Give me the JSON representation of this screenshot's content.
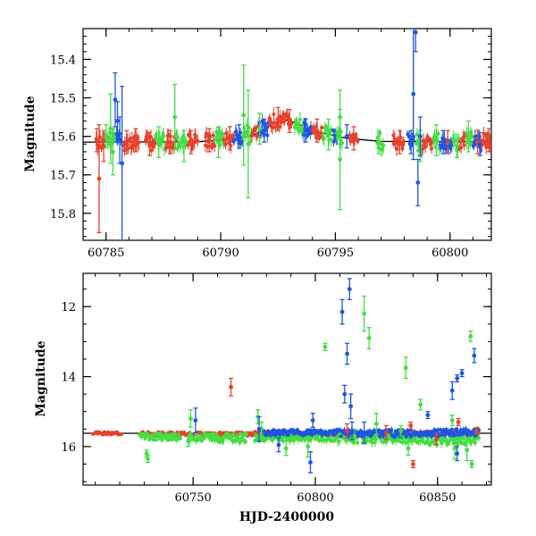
{
  "colors": {
    "red": "#e8412c",
    "green": "#44dd44",
    "blue": "#1f55e0",
    "model": "#000000"
  },
  "chart_data": [
    {
      "type": "scatter",
      "title": "",
      "xlabel": "",
      "ylabel": "Magnitude",
      "xlim": [
        60784,
        60801.8
      ],
      "ylim": [
        15.87,
        15.32
      ],
      "y_inverted": true,
      "grid": false,
      "xticks": [
        60785,
        60790,
        60795,
        60800
      ],
      "xtick_labels": [
        "60785",
        "60790",
        "60795",
        "60800"
      ],
      "yticks": [
        15.4,
        15.5,
        15.6,
        15.7,
        15.8
      ],
      "ytick_labels": [
        "15.4",
        "15.5",
        "15.6",
        "15.7",
        "15.8"
      ],
      "model_curve": {
        "x": [
          60784,
          60789,
          60790.5,
          60791.5,
          60792.2,
          60792.7,
          60793.3,
          60794,
          60795.5,
          60797,
          60801.8
        ],
        "y": [
          15.615,
          15.614,
          15.608,
          15.595,
          15.57,
          15.555,
          15.565,
          15.585,
          15.605,
          15.613,
          15.614
        ]
      },
      "series": [
        {
          "color": "red",
          "points": [
            [
              60784.6,
              15.61,
              0.03
            ],
            [
              60784.7,
              15.71,
              0.14
            ],
            [
              60784.9,
              15.625,
              0.04
            ],
            [
              60785.9,
              15.615,
              0.03
            ],
            [
              60786.3,
              15.61,
              0.03
            ],
            [
              60786.9,
              15.62,
              0.03
            ],
            [
              60787.8,
              15.615,
              0.03
            ],
            [
              60788.7,
              15.615,
              0.03
            ],
            [
              60789.5,
              15.61,
              0.03
            ],
            [
              60790.4,
              15.605,
              0.03
            ],
            [
              60792.5,
              15.555,
              0.03
            ],
            [
              60793.0,
              15.56,
              0.03
            ],
            [
              60794.2,
              15.585,
              0.03
            ],
            [
              60795.8,
              15.605,
              0.03
            ],
            [
              60797.8,
              15.615,
              0.03
            ],
            [
              60799.9,
              15.615,
              0.03
            ],
            [
              60801.2,
              15.615,
              0.03
            ],
            [
              60801.7,
              15.61,
              0.03
            ]
          ]
        },
        {
          "color": "green",
          "points": [
            [
              60785.0,
              15.6,
              0.03
            ],
            [
              60785.2,
              15.58,
              0.09
            ],
            [
              60785.3,
              15.64,
              0.06
            ],
            [
              60787.3,
              15.615,
              0.04
            ],
            [
              60788.0,
              15.55,
              0.085
            ],
            [
              60788.4,
              15.625,
              0.04
            ],
            [
              60789.9,
              15.615,
              0.04
            ],
            [
              60791.0,
              15.545,
              0.13
            ],
            [
              60791.2,
              15.62,
              0.14
            ],
            [
              60791.7,
              15.58,
              0.04
            ],
            [
              60794.7,
              15.595,
              0.04
            ],
            [
              60795.2,
              15.55,
              0.07
            ],
            [
              60795.2,
              15.66,
              0.13
            ],
            [
              60796.9,
              15.615,
              0.03
            ],
            [
              60798.7,
              15.625,
              0.04
            ],
            [
              60799.4,
              15.61,
              0.04
            ],
            [
              60800.3,
              15.625,
              0.03
            ],
            [
              60800.8,
              15.6,
              0.04
            ]
          ]
        },
        {
          "color": "blue",
          "points": [
            [
              60785.4,
              15.505,
              0.07
            ],
            [
              60785.5,
              15.56,
              0.05
            ],
            [
              60785.6,
              15.61,
              0.06
            ],
            [
              60785.7,
              15.67,
              0.2
            ],
            [
              60790.8,
              15.6,
              0.03
            ],
            [
              60791.9,
              15.585,
              0.03
            ],
            [
              60793.7,
              15.585,
              0.03
            ],
            [
              60795.5,
              15.6,
              0.03
            ],
            [
              60798.3,
              15.615,
              0.03
            ],
            [
              60798.4,
              15.49,
              0.17
            ],
            [
              60798.5,
              15.33,
              0.05
            ],
            [
              60798.6,
              15.72,
              0.06
            ],
            [
              60798.7,
              15.6,
              0.05
            ],
            [
              60799.7,
              15.615,
              0.03
            ],
            [
              60801.3,
              15.62,
              0.03
            ]
          ]
        }
      ],
      "dense_bands": [
        {
          "color": "red",
          "x0": 60784.55,
          "x1": 60784.95,
          "y": 15.615,
          "spread": 0.022
        },
        {
          "color": "green",
          "x0": 60785.0,
          "x1": 60785.4,
          "y": 15.612,
          "spread": 0.025
        },
        {
          "color": "blue",
          "x0": 60785.45,
          "x1": 60785.65,
          "y": 15.605,
          "spread": 0.02
        },
        {
          "color": "red",
          "x0": 60785.75,
          "x1": 60786.45,
          "y": 15.615,
          "spread": 0.022
        },
        {
          "color": "red",
          "x0": 60786.7,
          "x1": 60787.15,
          "y": 15.617,
          "spread": 0.02
        },
        {
          "color": "green",
          "x0": 60787.15,
          "x1": 60787.6,
          "y": 15.614,
          "spread": 0.022
        },
        {
          "color": "red",
          "x0": 60787.6,
          "x1": 60788.05,
          "y": 15.615,
          "spread": 0.02
        },
        {
          "color": "green",
          "x0": 60788.05,
          "x1": 60788.5,
          "y": 15.613,
          "spread": 0.022
        },
        {
          "color": "red",
          "x0": 60788.55,
          "x1": 60789.0,
          "y": 15.614,
          "spread": 0.02
        },
        {
          "color": "red",
          "x0": 60789.3,
          "x1": 60789.75,
          "y": 15.612,
          "spread": 0.02
        },
        {
          "color": "green",
          "x0": 60789.75,
          "x1": 60790.15,
          "y": 15.61,
          "spread": 0.022
        },
        {
          "color": "red",
          "x0": 60790.15,
          "x1": 60790.55,
          "y": 15.606,
          "spread": 0.02
        },
        {
          "color": "blue",
          "x0": 60790.55,
          "x1": 60790.95,
          "y": 15.6,
          "spread": 0.02
        },
        {
          "color": "green",
          "x0": 60790.95,
          "x1": 60791.35,
          "y": 15.595,
          "spread": 0.025
        },
        {
          "color": "red",
          "x0": 60791.35,
          "x1": 60791.65,
          "y": 15.588,
          "spread": 0.018
        },
        {
          "color": "blue",
          "x0": 60791.65,
          "x1": 60792.1,
          "y": 15.58,
          "spread": 0.02
        },
        {
          "color": "red",
          "x0": 60792.1,
          "x1": 60792.6,
          "y": 15.56,
          "spread": 0.018
        },
        {
          "color": "red",
          "x0": 60792.6,
          "x1": 60793.1,
          "y": 15.558,
          "spread": 0.018
        },
        {
          "color": "green",
          "x0": 60793.2,
          "x1": 60793.6,
          "y": 15.575,
          "spread": 0.02
        },
        {
          "color": "blue",
          "x0": 60793.6,
          "x1": 60794.0,
          "y": 15.585,
          "spread": 0.02
        },
        {
          "color": "red",
          "x0": 60794.0,
          "x1": 60794.45,
          "y": 15.59,
          "spread": 0.018
        },
        {
          "color": "green",
          "x0": 60794.45,
          "x1": 60794.85,
          "y": 15.596,
          "spread": 0.02
        },
        {
          "color": "blue",
          "x0": 60794.9,
          "x1": 60795.1,
          "y": 15.6,
          "spread": 0.018
        },
        {
          "color": "green",
          "x0": 60795.05,
          "x1": 60795.3,
          "y": 15.6,
          "spread": 0.02
        },
        {
          "color": "red",
          "x0": 60795.6,
          "x1": 60796.0,
          "y": 15.605,
          "spread": 0.015
        },
        {
          "color": "green",
          "x0": 60796.8,
          "x1": 60797.1,
          "y": 15.613,
          "spread": 0.022
        },
        {
          "color": "red",
          "x0": 60797.5,
          "x1": 60798.0,
          "y": 15.615,
          "spread": 0.02
        },
        {
          "color": "blue",
          "x0": 60798.15,
          "x1": 60798.45,
          "y": 15.613,
          "spread": 0.02
        },
        {
          "color": "green",
          "x0": 60798.5,
          "x1": 60798.8,
          "y": 15.62,
          "spread": 0.025
        },
        {
          "color": "red",
          "x0": 60798.8,
          "x1": 60799.25,
          "y": 15.615,
          "spread": 0.02
        },
        {
          "color": "green",
          "x0": 60799.25,
          "x1": 60799.55,
          "y": 15.612,
          "spread": 0.022
        },
        {
          "color": "blue",
          "x0": 60799.55,
          "x1": 60800.1,
          "y": 15.616,
          "spread": 0.02
        },
        {
          "color": "green",
          "x0": 60800.1,
          "x1": 60800.4,
          "y": 15.614,
          "spread": 0.025
        },
        {
          "color": "red",
          "x0": 60800.4,
          "x1": 60800.7,
          "y": 15.613,
          "spread": 0.02
        },
        {
          "color": "green",
          "x0": 60800.7,
          "x1": 60801.0,
          "y": 15.61,
          "spread": 0.022
        },
        {
          "color": "blue",
          "x0": 60801.0,
          "x1": 60801.35,
          "y": 15.618,
          "spread": 0.02
        },
        {
          "color": "red",
          "x0": 60801.35,
          "x1": 60801.8,
          "y": 15.612,
          "spread": 0.02
        }
      ]
    },
    {
      "type": "scatter",
      "title": "",
      "xlabel": "HJD-2400000",
      "ylabel": "Magnitude",
      "xlim": [
        60705,
        60872
      ],
      "ylim": [
        17.1,
        11.05
      ],
      "y_inverted": true,
      "grid": false,
      "xticks": [
        60750,
        60800,
        60850
      ],
      "xtick_labels": [
        "60750",
        "60800",
        "60850"
      ],
      "yticks": [
        12,
        14,
        16
      ],
      "ytick_labels": [
        "12",
        "14",
        "16"
      ],
      "model_curve": {
        "x": [
          60705,
          60872
        ],
        "y": [
          15.62,
          15.62
        ]
      },
      "series": [
        {
          "color": "red",
          "points": [
            [
              60765.5,
              14.3,
              0.25
            ],
            [
              60813.0,
              15.55,
              0.2
            ],
            [
              60829.0,
              15.6,
              0.2
            ],
            [
              60839.0,
              15.4,
              0.1
            ],
            [
              60840.0,
              16.5,
              0.1
            ],
            [
              60858.5,
              15.3,
              0.1
            ],
            [
              60849.5,
              15.8,
              0.15
            ],
            [
              60866.0,
              15.55,
              0.1
            ]
          ]
        },
        {
          "color": "green",
          "points": [
            [
              60731.0,
              16.2,
              0.1
            ],
            [
              60731.5,
              16.35,
              0.1
            ],
            [
              60749.0,
              15.2,
              0.25
            ],
            [
              60748.0,
              15.85,
              0.15
            ],
            [
              60776.5,
              15.15,
              0.2
            ],
            [
              60778.0,
              15.5,
              0.2
            ],
            [
              60788.0,
              16.05,
              0.2
            ],
            [
              60797.0,
              16.0,
              0.3
            ],
            [
              60804.0,
              13.15,
              0.1
            ],
            [
              60816.0,
              15.7,
              0.2
            ],
            [
              60820.0,
              12.2,
              0.5
            ],
            [
              60822.0,
              12.9,
              0.3
            ],
            [
              60825.0,
              15.35,
              0.3
            ],
            [
              60835.0,
              15.55,
              0.15
            ],
            [
              60837.0,
              13.75,
              0.3
            ],
            [
              60838.0,
              16.05,
              0.2
            ],
            [
              60843.0,
              14.8,
              0.15
            ],
            [
              60856.0,
              15.25,
              0.15
            ],
            [
              60857.0,
              16.05,
              0.3
            ],
            [
              60862.0,
              16.1,
              0.3
            ],
            [
              60863.5,
              12.85,
              0.15
            ],
            [
              60864.0,
              16.5,
              0.1
            ]
          ]
        },
        {
          "color": "blue",
          "points": [
            [
              60751.0,
              15.25,
              0.35
            ],
            [
              60777.0,
              15.5,
              0.35
            ],
            [
              60785.0,
              15.95,
              0.2
            ],
            [
              60798.0,
              16.45,
              0.3
            ],
            [
              60799.0,
              15.25,
              0.2
            ],
            [
              60811.0,
              12.15,
              0.35
            ],
            [
              60812.0,
              14.5,
              0.25
            ],
            [
              60813.0,
              13.35,
              0.3
            ],
            [
              60814.0,
              11.5,
              0.3
            ],
            [
              60814.5,
              14.85,
              0.35
            ],
            [
              60815.0,
              15.55,
              0.25
            ],
            [
              60820.0,
              15.6,
              0.3
            ],
            [
              60846.0,
              15.1,
              0.1
            ],
            [
              60856.0,
              14.4,
              0.25
            ],
            [
              60858.0,
              14.05,
              0.1
            ],
            [
              60860.0,
              13.9,
              0.1
            ],
            [
              60865.0,
              13.4,
              0.2
            ],
            [
              60858.0,
              16.2,
              0.2
            ]
          ]
        }
      ],
      "dense_bands": [
        {
          "color": "red",
          "x0": 60709,
          "x1": 60721,
          "y": 15.62,
          "spread": 0.04
        },
        {
          "color": "red",
          "x0": 60728,
          "x1": 60745,
          "y": 15.64,
          "spread": 0.06
        },
        {
          "color": "green",
          "x0": 60728,
          "x1": 60745,
          "y": 15.72,
          "spread": 0.1
        },
        {
          "color": "red",
          "x0": 60745,
          "x1": 60775,
          "y": 15.64,
          "spread": 0.05
        },
        {
          "color": "green",
          "x0": 60748,
          "x1": 60772,
          "y": 15.75,
          "spread": 0.12
        },
        {
          "color": "red",
          "x0": 60775,
          "x1": 60808,
          "y": 15.63,
          "spread": 0.06
        },
        {
          "color": "green",
          "x0": 60775,
          "x1": 60808,
          "y": 15.72,
          "spread": 0.12
        },
        {
          "color": "blue",
          "x0": 60778,
          "x1": 60808,
          "y": 15.6,
          "spread": 0.08
        },
        {
          "color": "red",
          "x0": 60808,
          "x1": 60845,
          "y": 15.65,
          "spread": 0.08
        },
        {
          "color": "green",
          "x0": 60808,
          "x1": 60845,
          "y": 15.75,
          "spread": 0.14
        },
        {
          "color": "blue",
          "x0": 60808,
          "x1": 60845,
          "y": 15.62,
          "spread": 0.1
        },
        {
          "color": "red",
          "x0": 60845,
          "x1": 60867,
          "y": 15.63,
          "spread": 0.07
        },
        {
          "color": "green",
          "x0": 60845,
          "x1": 60867,
          "y": 15.8,
          "spread": 0.15
        },
        {
          "color": "blue",
          "x0": 60845,
          "x1": 60867,
          "y": 15.6,
          "spread": 0.1
        }
      ]
    }
  ]
}
